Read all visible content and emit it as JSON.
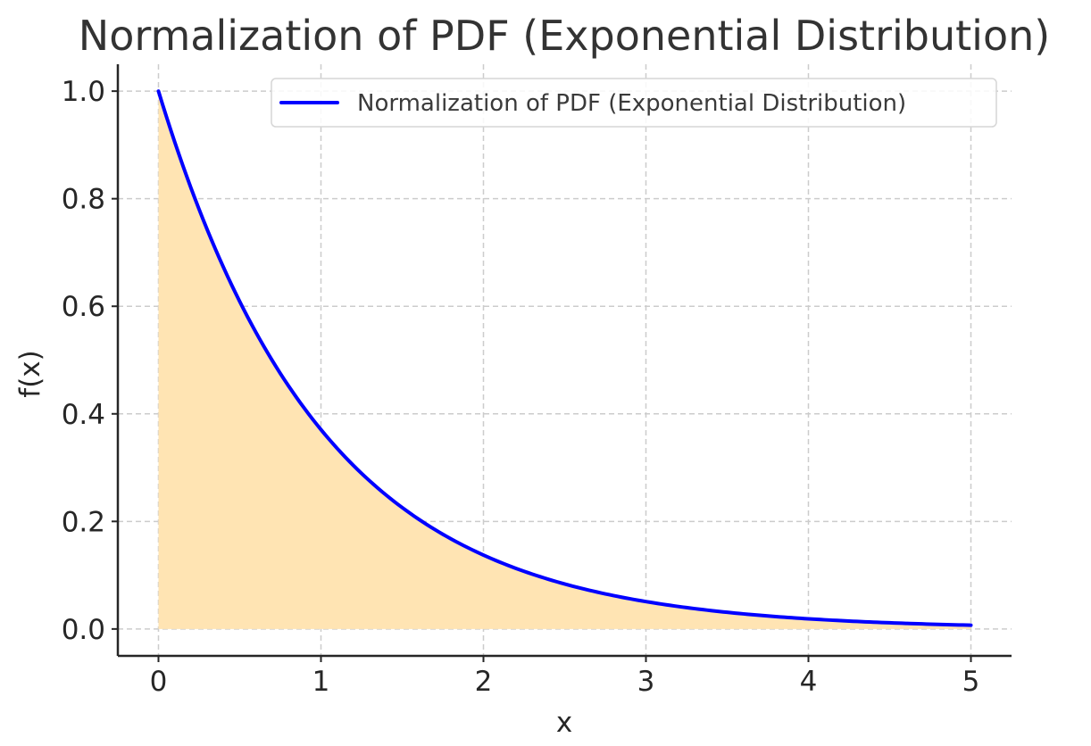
{
  "chart_data": {
    "type": "area",
    "title": "Normalization of PDF (Exponential Distribution)",
    "xlabel": "x",
    "ylabel": "f(x)",
    "xlim": [
      -0.25,
      5.25
    ],
    "ylim": [
      -0.05,
      1.05
    ],
    "xticks": [
      0,
      1,
      2,
      3,
      4,
      5
    ],
    "xtick_labels": [
      "0",
      "1",
      "2",
      "3",
      "4",
      "5"
    ],
    "yticks": [
      0.0,
      0.2,
      0.4,
      0.6,
      0.8,
      1.0
    ],
    "ytick_labels": [
      "0.0",
      "0.2",
      "0.4",
      "0.6",
      "0.8",
      "1.0"
    ],
    "grid": true,
    "legend_position": "top-right",
    "series": [
      {
        "name": "Normalization of PDF (Exponential Distribution)",
        "color": "#0000ff",
        "fill_color": "#ffe4b3",
        "x": [
          0,
          0.25,
          0.5,
          0.75,
          1,
          1.25,
          1.5,
          1.75,
          2,
          2.25,
          2.5,
          2.75,
          3,
          3.25,
          3.5,
          3.75,
          4,
          4.25,
          4.5,
          4.75,
          5
        ],
        "y": [
          1.0,
          0.779,
          0.607,
          0.472,
          0.368,
          0.287,
          0.223,
          0.174,
          0.135,
          0.105,
          0.082,
          0.064,
          0.05,
          0.039,
          0.03,
          0.024,
          0.018,
          0.014,
          0.011,
          0.009,
          0.007
        ]
      }
    ]
  }
}
